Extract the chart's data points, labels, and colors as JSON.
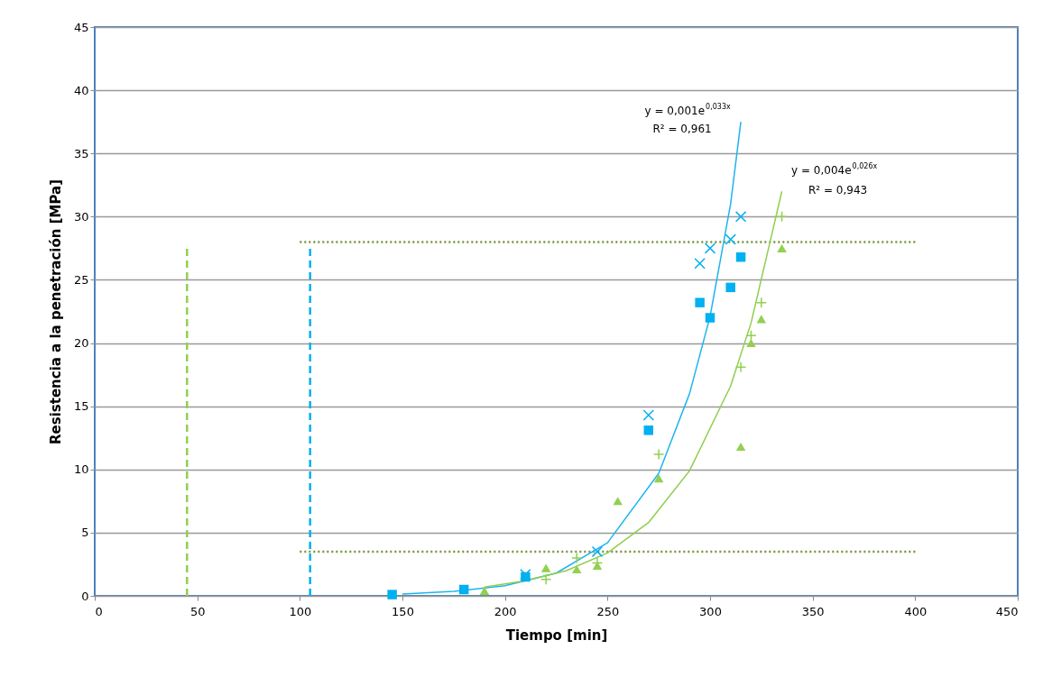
{
  "chart_data": {
    "type": "scatter",
    "xlabel": "Tiempo [min]",
    "ylabel": "Resistencia a la penetración [MPa]",
    "xlim": [
      0,
      450
    ],
    "xticks": [
      0,
      50,
      100,
      150,
      200,
      250,
      300,
      350,
      400,
      450
    ],
    "ylim": [
      0,
      45
    ],
    "yticks": [
      0,
      5,
      10,
      15,
      20,
      25,
      30,
      35,
      40,
      45
    ],
    "grid": "y",
    "series": [
      {
        "type": "line",
        "color": "#92d050",
        "line_style": "dashed",
        "x": [
          45,
          45
        ],
        "values": [
          0,
          27.5
        ]
      },
      {
        "type": "line",
        "color": "#00b0f0",
        "line_style": "dashed",
        "x": [
          105,
          105
        ],
        "values": [
          0,
          27.5
        ]
      },
      {
        "type": "line",
        "color": "#77933c",
        "line_style": "dotted",
        "x": [
          100,
          400
        ],
        "values": [
          28,
          28
        ]
      },
      {
        "type": "line",
        "color": "#77933c",
        "line_style": "dotted",
        "x": [
          100,
          400
        ],
        "values": [
          3.5,
          3.5
        ]
      },
      {
        "type": "line",
        "color": "#1fb4ef",
        "line_style": "solid",
        "x": [
          150,
          175,
          200,
          225,
          250,
          275,
          290,
          300,
          310,
          315
        ],
        "values": [
          0.15,
          0.35,
          0.8,
          1.8,
          4.2,
          9.7,
          16.0,
          22.1,
          31.0,
          37.5
        ]
      },
      {
        "type": "line",
        "color": "#8fce4f",
        "line_style": "solid",
        "x": [
          190,
          210,
          230,
          250,
          270,
          290,
          310,
          320,
          335
        ],
        "values": [
          0.7,
          1.2,
          2.0,
          3.4,
          5.8,
          9.9,
          16.6,
          21.6,
          32.0
        ]
      },
      {
        "color": "#92d050",
        "marker": "triangle",
        "x": [
          190,
          220,
          235,
          245,
          255,
          275,
          315,
          320,
          325,
          335
        ],
        "values": [
          0.4,
          2.2,
          2.1,
          2.4,
          7.5,
          9.3,
          11.8,
          20.0,
          21.9,
          27.5
        ]
      },
      {
        "color": "#92d050",
        "marker": "plus",
        "x": [
          220,
          235,
          245,
          275,
          315,
          320,
          325,
          335
        ],
        "values": [
          1.3,
          3.0,
          2.6,
          11.2,
          18.1,
          20.6,
          23.2,
          30.0
        ]
      },
      {
        "color": "#00b0f0",
        "marker": "square",
        "x": [
          145,
          180,
          210,
          270,
          295,
          300,
          310,
          315
        ],
        "values": [
          0.1,
          0.5,
          1.5,
          13.1,
          23.2,
          22.0,
          24.4,
          26.8
        ]
      },
      {
        "color": "#00b0f0",
        "marker": "cross",
        "x": [
          210,
          245,
          270,
          295,
          300,
          310,
          315
        ],
        "values": [
          1.7,
          3.5,
          14.3,
          26.3,
          27.5,
          28.2,
          30.0
        ]
      }
    ],
    "annotations": [
      "y = 0,001e$^{0,033x}$",
      "R² = 0,961",
      "y = 0,004e$^{0,026x}$",
      "R² = 0,943"
    ]
  }
}
